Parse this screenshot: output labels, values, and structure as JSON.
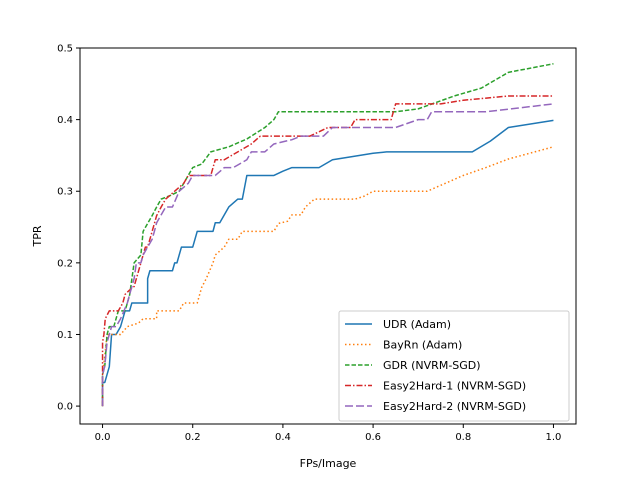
{
  "chart_data": {
    "type": "line",
    "title": "",
    "xlabel": "FPs/Image",
    "ylabel": "TPR",
    "xlim": [
      -0.05,
      1.05
    ],
    "ylim": [
      -0.025,
      0.5
    ],
    "xticks": [
      0.0,
      0.2,
      0.4,
      0.6,
      0.8,
      1.0
    ],
    "xtick_labels": [
      "0.0",
      "0.2",
      "0.4",
      "0.6",
      "0.8",
      "1.0"
    ],
    "yticks": [
      0.0,
      0.1,
      0.2,
      0.3,
      0.4,
      0.5
    ],
    "ytick_labels": [
      "0.0",
      "0.1",
      "0.2",
      "0.3",
      "0.4",
      "0.5"
    ],
    "grid": false,
    "legend_position": "lower-right",
    "series": [
      {
        "name": "UDR (Adam)",
        "color": "#1f77b4",
        "dash": "",
        "points": [
          [
            0.0,
            0.0
          ],
          [
            0.0,
            0.033
          ],
          [
            0.005,
            0.033
          ],
          [
            0.01,
            0.044
          ],
          [
            0.015,
            0.055
          ],
          [
            0.02,
            0.1
          ],
          [
            0.03,
            0.1
          ],
          [
            0.04,
            0.111
          ],
          [
            0.045,
            0.122
          ],
          [
            0.05,
            0.133
          ],
          [
            0.06,
            0.133
          ],
          [
            0.065,
            0.144
          ],
          [
            0.07,
            0.144
          ],
          [
            0.1,
            0.144
          ],
          [
            0.1,
            0.178
          ],
          [
            0.105,
            0.189
          ],
          [
            0.14,
            0.189
          ],
          [
            0.155,
            0.189
          ],
          [
            0.16,
            0.2
          ],
          [
            0.165,
            0.2
          ],
          [
            0.17,
            0.211
          ],
          [
            0.175,
            0.222
          ],
          [
            0.2,
            0.222
          ],
          [
            0.21,
            0.244
          ],
          [
            0.245,
            0.244
          ],
          [
            0.25,
            0.256
          ],
          [
            0.26,
            0.256
          ],
          [
            0.27,
            0.267
          ],
          [
            0.28,
            0.278
          ],
          [
            0.3,
            0.289
          ],
          [
            0.31,
            0.289
          ],
          [
            0.32,
            0.322
          ],
          [
            0.38,
            0.322
          ],
          [
            0.4,
            0.328
          ],
          [
            0.42,
            0.333
          ],
          [
            0.48,
            0.333
          ],
          [
            0.51,
            0.344
          ],
          [
            0.55,
            0.348
          ],
          [
            0.6,
            0.353
          ],
          [
            0.63,
            0.355
          ],
          [
            0.82,
            0.355
          ],
          [
            0.86,
            0.37
          ],
          [
            0.9,
            0.389
          ],
          [
            1.0,
            0.399
          ]
        ]
      },
      {
        "name": "BayRn (Adam)",
        "color": "#ff7f0e",
        "dash": "1.5,2.5",
        "points": [
          [
            0.0,
            0.0
          ],
          [
            0.0,
            0.044
          ],
          [
            0.005,
            0.07
          ],
          [
            0.01,
            0.1
          ],
          [
            0.03,
            0.1
          ],
          [
            0.04,
            0.1
          ],
          [
            0.055,
            0.111
          ],
          [
            0.08,
            0.116
          ],
          [
            0.09,
            0.122
          ],
          [
            0.12,
            0.122
          ],
          [
            0.12,
            0.133
          ],
          [
            0.17,
            0.133
          ],
          [
            0.18,
            0.144
          ],
          [
            0.21,
            0.144
          ],
          [
            0.22,
            0.166
          ],
          [
            0.23,
            0.178
          ],
          [
            0.245,
            0.2
          ],
          [
            0.25,
            0.211
          ],
          [
            0.27,
            0.222
          ],
          [
            0.28,
            0.233
          ],
          [
            0.3,
            0.233
          ],
          [
            0.31,
            0.244
          ],
          [
            0.38,
            0.244
          ],
          [
            0.39,
            0.255
          ],
          [
            0.41,
            0.258
          ],
          [
            0.42,
            0.267
          ],
          [
            0.44,
            0.267
          ],
          [
            0.45,
            0.278
          ],
          [
            0.47,
            0.289
          ],
          [
            0.56,
            0.289
          ],
          [
            0.58,
            0.293
          ],
          [
            0.6,
            0.3
          ],
          [
            0.72,
            0.3
          ],
          [
            0.76,
            0.311
          ],
          [
            0.8,
            0.322
          ],
          [
            0.85,
            0.333
          ],
          [
            0.9,
            0.345
          ],
          [
            1.0,
            0.362
          ]
        ]
      },
      {
        "name": "GDR (NVRM-SGD)",
        "color": "#2ca02c",
        "dash": "4.5,2",
        "points": [
          [
            0.0,
            0.0
          ],
          [
            0.0,
            0.044
          ],
          [
            0.005,
            0.056
          ],
          [
            0.01,
            0.1
          ],
          [
            0.015,
            0.111
          ],
          [
            0.025,
            0.111
          ],
          [
            0.03,
            0.122
          ],
          [
            0.035,
            0.133
          ],
          [
            0.05,
            0.133
          ],
          [
            0.055,
            0.144
          ],
          [
            0.06,
            0.155
          ],
          [
            0.07,
            0.2
          ],
          [
            0.085,
            0.211
          ],
          [
            0.09,
            0.244
          ],
          [
            0.1,
            0.255
          ],
          [
            0.11,
            0.266
          ],
          [
            0.12,
            0.278
          ],
          [
            0.13,
            0.289
          ],
          [
            0.15,
            0.294
          ],
          [
            0.17,
            0.3
          ],
          [
            0.18,
            0.311
          ],
          [
            0.19,
            0.322
          ],
          [
            0.2,
            0.333
          ],
          [
            0.22,
            0.338
          ],
          [
            0.24,
            0.355
          ],
          [
            0.28,
            0.362
          ],
          [
            0.32,
            0.373
          ],
          [
            0.34,
            0.381
          ],
          [
            0.36,
            0.389
          ],
          [
            0.38,
            0.4
          ],
          [
            0.39,
            0.411
          ],
          [
            0.65,
            0.411
          ],
          [
            0.7,
            0.415
          ],
          [
            0.78,
            0.433
          ],
          [
            0.84,
            0.444
          ],
          [
            0.9,
            0.466
          ],
          [
            1.0,
            0.478
          ]
        ]
      },
      {
        "name": "Easy2Hard-1 (NVRM-SGD)",
        "color": "#d62728",
        "dash": "6,2,1.5,2",
        "points": [
          [
            0.0,
            0.0
          ],
          [
            0.0,
            0.089
          ],
          [
            0.003,
            0.1
          ],
          [
            0.006,
            0.122
          ],
          [
            0.015,
            0.133
          ],
          [
            0.035,
            0.133
          ],
          [
            0.045,
            0.144
          ],
          [
            0.05,
            0.156
          ],
          [
            0.06,
            0.162
          ],
          [
            0.07,
            0.167
          ],
          [
            0.08,
            0.189
          ],
          [
            0.085,
            0.2
          ],
          [
            0.095,
            0.222
          ],
          [
            0.1,
            0.222
          ],
          [
            0.11,
            0.244
          ],
          [
            0.115,
            0.255
          ],
          [
            0.12,
            0.266
          ],
          [
            0.13,
            0.278
          ],
          [
            0.14,
            0.289
          ],
          [
            0.16,
            0.3
          ],
          [
            0.18,
            0.311
          ],
          [
            0.19,
            0.322
          ],
          [
            0.24,
            0.322
          ],
          [
            0.25,
            0.344
          ],
          [
            0.27,
            0.344
          ],
          [
            0.3,
            0.355
          ],
          [
            0.33,
            0.366
          ],
          [
            0.35,
            0.377
          ],
          [
            0.46,
            0.377
          ],
          [
            0.5,
            0.389
          ],
          [
            0.55,
            0.389
          ],
          [
            0.56,
            0.4
          ],
          [
            0.64,
            0.4
          ],
          [
            0.65,
            0.422
          ],
          [
            0.7,
            0.422
          ],
          [
            0.75,
            0.422
          ],
          [
            0.8,
            0.427
          ],
          [
            0.9,
            0.433
          ],
          [
            1.0,
            0.433
          ]
        ]
      },
      {
        "name": "Easy2Hard-2 (NVRM-SGD)",
        "color": "#9467bd",
        "dash": "8,3",
        "points": [
          [
            0.0,
            0.0
          ],
          [
            0.0,
            0.044
          ],
          [
            0.005,
            0.056
          ],
          [
            0.01,
            0.089
          ],
          [
            0.015,
            0.1
          ],
          [
            0.02,
            0.111
          ],
          [
            0.03,
            0.111
          ],
          [
            0.04,
            0.122
          ],
          [
            0.055,
            0.144
          ],
          [
            0.065,
            0.167
          ],
          [
            0.07,
            0.178
          ],
          [
            0.075,
            0.2
          ],
          [
            0.085,
            0.2
          ],
          [
            0.09,
            0.211
          ],
          [
            0.1,
            0.222
          ],
          [
            0.11,
            0.233
          ],
          [
            0.115,
            0.244
          ],
          [
            0.12,
            0.256
          ],
          [
            0.13,
            0.267
          ],
          [
            0.14,
            0.278
          ],
          [
            0.155,
            0.278
          ],
          [
            0.17,
            0.3
          ],
          [
            0.19,
            0.311
          ],
          [
            0.2,
            0.322
          ],
          [
            0.25,
            0.322
          ],
          [
            0.27,
            0.333
          ],
          [
            0.29,
            0.333
          ],
          [
            0.32,
            0.344
          ],
          [
            0.33,
            0.355
          ],
          [
            0.36,
            0.355
          ],
          [
            0.38,
            0.366
          ],
          [
            0.42,
            0.372
          ],
          [
            0.44,
            0.377
          ],
          [
            0.49,
            0.377
          ],
          [
            0.51,
            0.389
          ],
          [
            0.65,
            0.389
          ],
          [
            0.7,
            0.4
          ],
          [
            0.72,
            0.4
          ],
          [
            0.73,
            0.411
          ],
          [
            0.85,
            0.411
          ],
          [
            0.92,
            0.416
          ],
          [
            1.0,
            0.422
          ]
        ]
      }
    ]
  }
}
